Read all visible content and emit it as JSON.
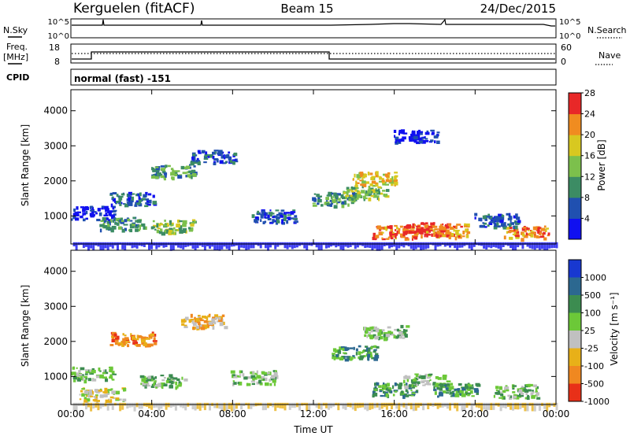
{
  "header": {
    "station": "Kerguelen (fitACF)",
    "beam": "Beam 15",
    "date": "24/Dec/2015"
  },
  "status_panels": {
    "nsky_label": "N.Sky",
    "nsearch_label": "N.Search",
    "left_ticks_top": [
      "10^5",
      "10^0"
    ],
    "right_ticks_top": [
      "10^5",
      "10^0"
    ],
    "freq_label_line1": "Freq.",
    "freq_label_line2": "[MHz]",
    "freq_ticks": [
      "18",
      "8"
    ],
    "nave_label": "Nave",
    "nave_ticks": [
      "60",
      "0"
    ],
    "cpid_label": "CPID",
    "cpid_text": "normal (fast) -151"
  },
  "chart_data": [
    {
      "type": "heatmap",
      "name": "Power panel",
      "ylabel": "Slant Range [km]",
      "y_ticks": [
        "1000",
        "2000",
        "3000",
        "4000"
      ],
      "ylim": [
        200,
        4600
      ],
      "x_ticks": [
        "00:00",
        "04:00",
        "08:00",
        "12:00",
        "16:00",
        "20:00",
        "00:00"
      ],
      "xlim_hours": [
        0,
        24
      ],
      "colorbar": {
        "label": "Power [dB]",
        "ticks": [
          "4",
          "8",
          "12",
          "16",
          "20",
          "24",
          "28"
        ],
        "colors": [
          "#1010f0",
          "#2050b0",
          "#3c8c64",
          "#7cc04c",
          "#d8c820",
          "#f08c20",
          "#e82828"
        ]
      },
      "features": [
        {
          "t": 1.0,
          "r": 1100,
          "level": 1
        },
        {
          "t": 2.5,
          "r": 800,
          "level": 3
        },
        {
          "t": 5.0,
          "r": 720,
          "level": 4
        },
        {
          "t": 3.0,
          "r": 1500,
          "level": 2
        },
        {
          "t": 5.0,
          "r": 2300,
          "level": 3
        },
        {
          "t": 7.0,
          "r": 2700,
          "level": 2
        },
        {
          "t": 10.0,
          "r": 1000,
          "level": 2
        },
        {
          "t": 13.0,
          "r": 1500,
          "level": 3
        },
        {
          "t": 14.5,
          "r": 1700,
          "level": 4
        },
        {
          "t": 15.0,
          "r": 2100,
          "level": 5
        },
        {
          "t": 16.0,
          "r": 550,
          "level": 6
        },
        {
          "t": 17.5,
          "r": 650,
          "level": 7
        },
        {
          "t": 18.5,
          "r": 600,
          "level": 6
        },
        {
          "t": 22.5,
          "r": 550,
          "level": 6
        },
        {
          "t": 17.0,
          "r": 3300,
          "level": 1
        },
        {
          "t": 21.0,
          "r": 900,
          "level": 2
        }
      ]
    },
    {
      "type": "heatmap",
      "name": "Velocity panel",
      "ylabel": "Slant Range [km]",
      "xlabel": "Time UT",
      "y_ticks": [
        "1000",
        "2000",
        "3000",
        "4000"
      ],
      "ylim": [
        200,
        4600
      ],
      "x_ticks": [
        "00:00",
        "04:00",
        "08:00",
        "12:00",
        "16:00",
        "20:00",
        "00:00"
      ],
      "xlim_hours": [
        0,
        24
      ],
      "colorbar": {
        "label": "Velocity [m s⁻¹]",
        "ticks": [
          "1000",
          "500",
          "100",
          "25",
          "-25",
          "-100",
          "-500",
          "-1000"
        ],
        "colors": [
          "#1838d0",
          "#2c6890",
          "#3c8c50",
          "#6cc838",
          "#c0c0c0",
          "#e8b018",
          "#f08820",
          "#e83018"
        ]
      },
      "features": [
        {
          "t": 1.0,
          "r": 1100,
          "level": 4
        },
        {
          "t": 3.0,
          "r": 2100,
          "level": 7
        },
        {
          "t": 4.5,
          "r": 900,
          "level": 4
        },
        {
          "t": 9.0,
          "r": 1000,
          "level": 4
        },
        {
          "t": 14.0,
          "r": 1700,
          "level": 3
        },
        {
          "t": 16.0,
          "r": 650,
          "level": 3
        },
        {
          "t": 17.5,
          "r": 900,
          "level": 4
        },
        {
          "t": 19.0,
          "r": 650,
          "level": 3
        },
        {
          "t": 1.5,
          "r": 500,
          "level": 5
        },
        {
          "t": 15.5,
          "r": 2300,
          "level": 4
        },
        {
          "t": 22.0,
          "r": 600,
          "level": 4
        },
        {
          "t": 6.5,
          "r": 2600,
          "level": 6
        }
      ]
    }
  ]
}
